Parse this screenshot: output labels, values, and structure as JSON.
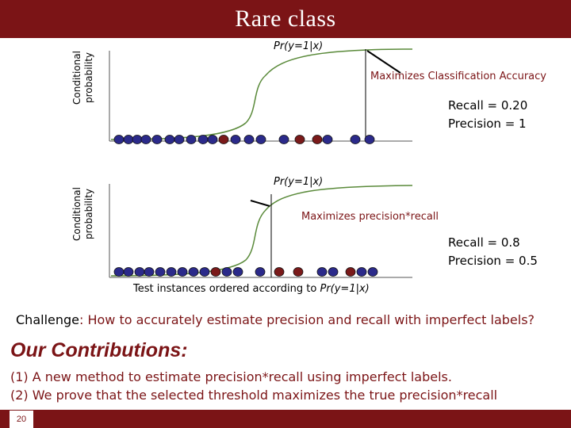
{
  "slide": {
    "title": "Rare class",
    "page_number": "20"
  },
  "top_panel": {
    "y_axis_label_line1": "Conditional",
    "y_axis_label_line2": "probability",
    "curve_label": "Pr(y=1|x)",
    "annotation": "Maximizes Classification Accuracy",
    "recall": "Recall = 0.20",
    "precision": "Precision = 1"
  },
  "bottom_panel": {
    "y_axis_label_line1": "Conditional",
    "y_axis_label_line2": "probability",
    "curve_label": "Pr(y=1|x)",
    "annotation": "Maximizes precision*recall",
    "recall": "Recall = 0.8",
    "precision": "Precision = 0.5",
    "x_axis_caption_prefix": "Test instances ordered according to ",
    "x_axis_caption_italic": "Pr(y=1|x)"
  },
  "challenge": {
    "lead": "Challenge",
    "text": ": How to accurately estimate precision and recall with imperfect labels?"
  },
  "contributions": {
    "title": "Our Contributions:",
    "items": [
      "(1) A new method to estimate precision*recall using imperfect labels.",
      "(2) We prove that the selected threshold maximizes the true precision*recall"
    ]
  },
  "colors": {
    "accent": "#7b1416",
    "negative_point": "#2b2a8a",
    "positive_point": "#7a1a1a",
    "curve": "#5a8a3a"
  }
}
